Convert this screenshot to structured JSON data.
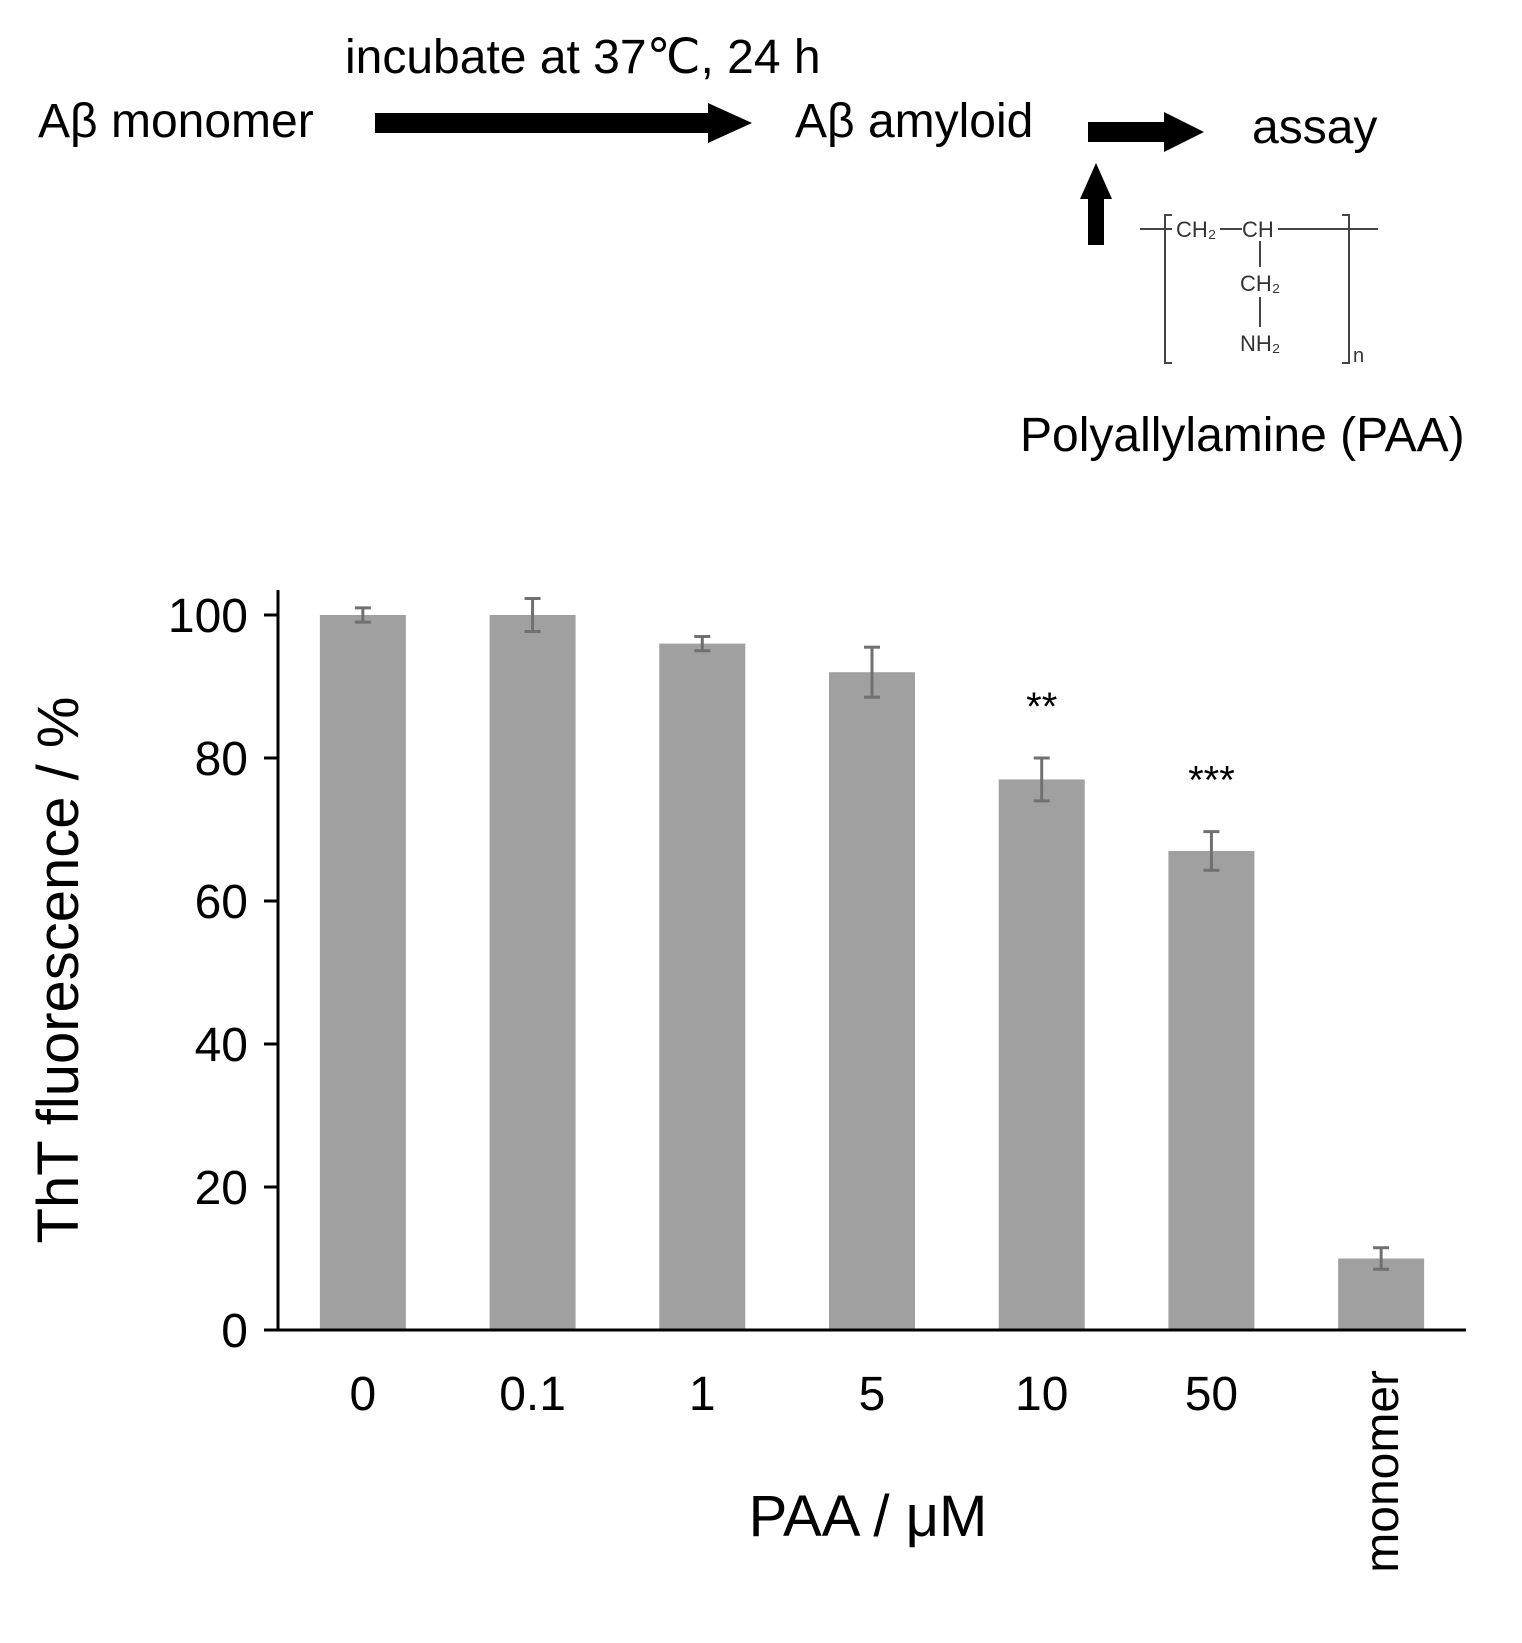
{
  "scheme": {
    "start_label": "Aβ monomer",
    "step_label": "incubate at 37℃, 24 h",
    "middle_label": "Aβ amyloid",
    "end_label": "assay",
    "additive_label": "Polyallylamine (PAA)",
    "structure": {
      "ch2_top": "CH₂",
      "ch": "CH",
      "ch2_side": "CH₂",
      "nh2": "NH₂",
      "subscript_n": "n"
    }
  },
  "chart_data": {
    "type": "bar",
    "categories": [
      "0",
      "0.1",
      "1",
      "5",
      "10",
      "50",
      "monomer"
    ],
    "values": [
      100,
      100,
      96,
      92,
      77,
      67,
      10
    ],
    "errors": [
      1,
      2.3,
      1,
      3.5,
      3,
      2.7,
      1.5
    ],
    "significance": [
      "",
      "",
      "",
      "",
      "**",
      "***",
      ""
    ],
    "xlabel": "PAA / μM",
    "ylabel": "ThT fluorescence / %",
    "yticks": [
      0,
      20,
      40,
      60,
      80,
      100
    ],
    "ylim": [
      0,
      119
    ],
    "bar_color": "#a0a0a0",
    "error_color": "#707070",
    "grid": false,
    "legend": "none"
  }
}
